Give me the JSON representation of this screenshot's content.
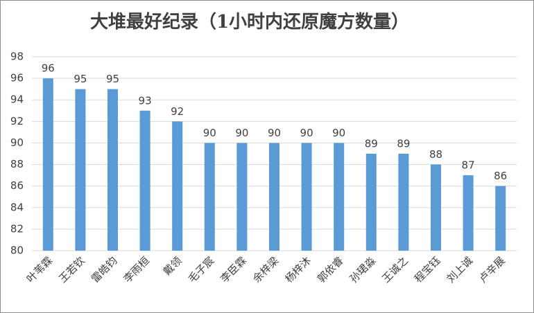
{
  "chart_data": {
    "type": "bar",
    "title": "大堆最好纪录（1小时内还原魔方数量）",
    "categories": [
      "叶苇霖",
      "王若钦",
      "雷皓钧",
      "李雨桓",
      "戴领",
      "毛子宸",
      "李臣霖",
      "余梓梁",
      "杨梓沐",
      "郭依睿",
      "孙珺淼",
      "王诚之",
      "程宝钰",
      "刘上诚",
      "卢辛展"
    ],
    "values": [
      96,
      95,
      95,
      93,
      92,
      90,
      90,
      90,
      90,
      90,
      89,
      89,
      88,
      87,
      86
    ],
    "color": "#5b9bd5",
    "ylim": [
      80,
      98
    ],
    "yticks": [
      80,
      82,
      84,
      86,
      88,
      90,
      92,
      94,
      96,
      98
    ],
    "grid": true
  }
}
